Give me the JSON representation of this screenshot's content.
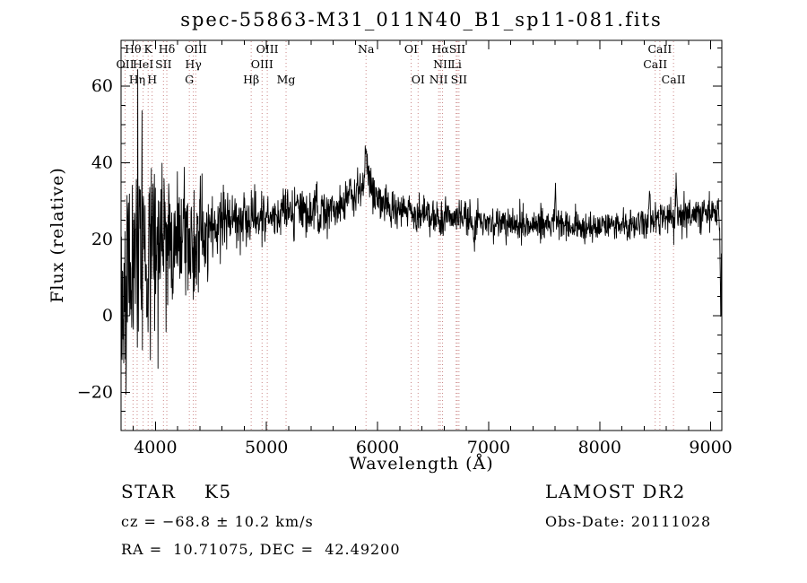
{
  "chart_data": {
    "type": "line",
    "title": "spec-55863-M31_011N40_B1_sp11-081.fits",
    "xlabel": "Wavelength (Å)",
    "ylabel": "Flux (relative)",
    "xlim": [
      3690,
      9100
    ],
    "ylim": [
      -30,
      72
    ],
    "grid": false,
    "legend": "none",
    "xticks": {
      "major_start": 4000,
      "major_end": 9000,
      "major_step": 1000,
      "minor_step": 200
    },
    "yticks": {
      "major_start": -20,
      "major_end": 60,
      "major_step": 20,
      "minor_step": 5
    },
    "spectral_lines": [
      {
        "label": "Hθ",
        "wl": 3798,
        "row": 0
      },
      {
        "label": "K",
        "wl": 3934,
        "row": 0
      },
      {
        "label": "Hδ",
        "wl": 4102,
        "row": 0
      },
      {
        "label": "OIII",
        "wl": 4363,
        "row": 0
      },
      {
        "label": "OIII",
        "wl": 5007,
        "row": 0
      },
      {
        "label": "Na",
        "wl": 5896,
        "row": 0
      },
      {
        "label": "OI",
        "wl": 6302,
        "row": 0
      },
      {
        "label": "Hα",
        "wl": 6565,
        "row": 0
      },
      {
        "label": "SII",
        "wl": 6718,
        "row": 0
      },
      {
        "label": "CaII",
        "wl": 8542,
        "row": 0
      },
      {
        "label": "OII",
        "wl": 3727,
        "row": 1
      },
      {
        "label": "HeI",
        "wl": 3889,
        "row": 1
      },
      {
        "label": "SII",
        "wl": 4072,
        "row": 1
      },
      {
        "label": "Hγ",
        "wl": 4341,
        "row": 1
      },
      {
        "label": "OIII",
        "wl": 4960,
        "row": 1
      },
      {
        "label": "NII",
        "wl": 6585,
        "row": 1
      },
      {
        "label": "Li",
        "wl": 6708,
        "row": 1
      },
      {
        "label": "CaII",
        "wl": 8500,
        "row": 1
      },
      {
        "label": "Hη",
        "wl": 3835,
        "row": 2
      },
      {
        "label": "H",
        "wl": 3970,
        "row": 2
      },
      {
        "label": "G",
        "wl": 4305,
        "row": 2
      },
      {
        "label": "Hβ",
        "wl": 4862,
        "row": 2
      },
      {
        "label": "Mg",
        "wl": 5176,
        "row": 2
      },
      {
        "label": "OI",
        "wl": 6365,
        "row": 2
      },
      {
        "label": "NII",
        "wl": 6550,
        "row": 2
      },
      {
        "label": "SII",
        "wl": 6733,
        "row": 2
      },
      {
        "label": "CaII",
        "wl": 8665,
        "row": 2
      }
    ],
    "spectrum": {
      "x_start": 3690,
      "x_end": 9100,
      "x_step": 3,
      "continuum_anchors": [
        [
          3690,
          8
        ],
        [
          3750,
          12
        ],
        [
          3800,
          14
        ],
        [
          3850,
          16
        ],
        [
          3900,
          17
        ],
        [
          3950,
          18
        ],
        [
          4000,
          18
        ],
        [
          4100,
          19
        ],
        [
          4200,
          20
        ],
        [
          4300,
          21
        ],
        [
          4400,
          22
        ],
        [
          4500,
          24
        ],
        [
          4700,
          25
        ],
        [
          4900,
          26
        ],
        [
          5100,
          27
        ],
        [
          5300,
          27
        ],
        [
          5500,
          28
        ],
        [
          5700,
          29
        ],
        [
          5850,
          32
        ],
        [
          5920,
          33
        ],
        [
          6000,
          30
        ],
        [
          6100,
          28
        ],
        [
          6300,
          27
        ],
        [
          6500,
          26
        ],
        [
          6700,
          26
        ],
        [
          6900,
          25
        ],
        [
          7100,
          24
        ],
        [
          7300,
          23.5
        ],
        [
          7500,
          24
        ],
        [
          7700,
          24
        ],
        [
          7900,
          23.5
        ],
        [
          8100,
          23.5
        ],
        [
          8300,
          24
        ],
        [
          8500,
          25
        ],
        [
          8700,
          26
        ],
        [
          8900,
          27
        ],
        [
          9100,
          27
        ]
      ],
      "noise_sigma_anchors": [
        [
          3690,
          16
        ],
        [
          3800,
          16
        ],
        [
          3900,
          14
        ],
        [
          4000,
          12
        ],
        [
          4100,
          10
        ],
        [
          4200,
          9
        ],
        [
          4300,
          8
        ],
        [
          4400,
          6
        ],
        [
          4500,
          5
        ],
        [
          4600,
          4.2
        ],
        [
          4800,
          3.6
        ],
        [
          5000,
          3.3
        ],
        [
          5500,
          3.0
        ],
        [
          6000,
          2.7
        ],
        [
          6500,
          2.3
        ],
        [
          7000,
          2.0
        ],
        [
          7500,
          2.0
        ],
        [
          8000,
          1.9
        ],
        [
          8500,
          2.1
        ],
        [
          9000,
          2.3
        ],
        [
          9100,
          2.3
        ]
      ],
      "features": [
        {
          "x": 5893,
          "amp": 9,
          "width": 6
        },
        {
          "x": 5900,
          "amp": 3,
          "width": 60
        },
        {
          "x": 6563,
          "amp": -3,
          "width": 5
        },
        {
          "x": 6868,
          "amp": -5,
          "width": 7
        },
        {
          "x": 7600,
          "amp": 8,
          "width": 6
        },
        {
          "x": 8450,
          "amp": 9,
          "width": 5
        },
        {
          "x": 8690,
          "amp": 11,
          "width": 5
        },
        {
          "x": 9090,
          "amp": -26,
          "width": 6
        }
      ]
    }
  },
  "footer": {
    "class_line": "STAR    K5",
    "survey": "LAMOST DR2",
    "cz": "cz = −68.8 ± 10.2 km/s",
    "obs_date": "Obs-Date: 20111028",
    "ra_dec": "RA =  10.71075, DEC =  42.49200"
  },
  "colors": {
    "background": "#ffffff",
    "spectrum": "#000000",
    "axes": "#000000",
    "line_marker": "#cc8888"
  }
}
